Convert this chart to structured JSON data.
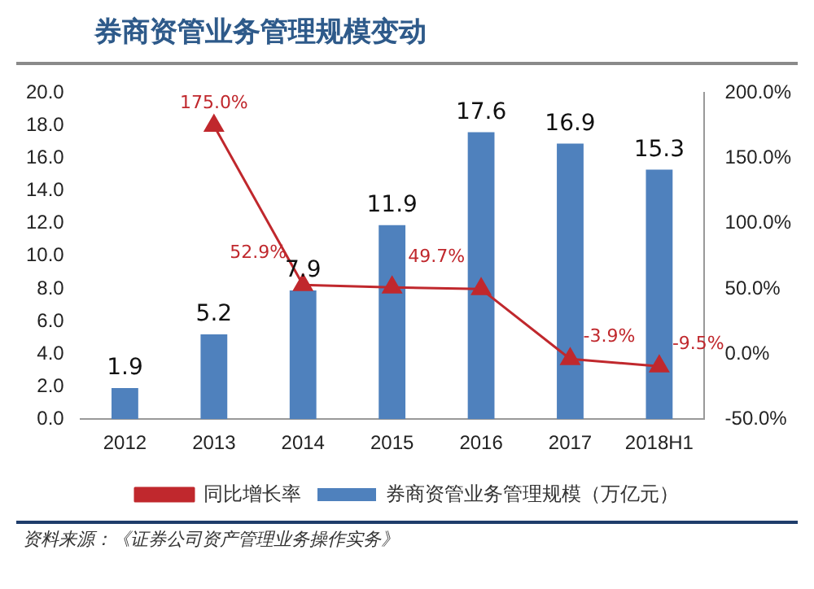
{
  "chart_data": {
    "type": "bar",
    "title": "券商资管业务管理规模变动",
    "categories": [
      "2012",
      "2013",
      "2014",
      "2015",
      "2016",
      "2017",
      "2018H1"
    ],
    "series": [
      {
        "name": "券商资管业务管理规模（万亿元）",
        "color": "#4f81bd",
        "values": [
          1.9,
          5.2,
          7.9,
          11.9,
          17.6,
          16.9,
          15.3
        ],
        "value_labels": [
          "1.9",
          "5.2",
          "7.9",
          "11.9",
          "17.6",
          "16.9",
          "15.3"
        ]
      },
      {
        "name": "同比增长率",
        "type": "line",
        "axis": "y2",
        "color": "#c0282d",
        "marker": "triangle",
        "values": [
          null,
          175.0,
          52.9,
          51,
          49.7,
          -3.9,
          -9.5
        ],
        "value_labels": [
          null,
          "175.0%",
          "52.9%",
          null,
          "49.7%",
          "-3.9%",
          "-9.5%"
        ]
      }
    ],
    "ylim": [
      0,
      20
    ],
    "yticks": [
      {
        "value": 0,
        "label": "0.0"
      },
      {
        "value": 2,
        "label": "2.0"
      },
      {
        "value": 4,
        "label": "4.0"
      },
      {
        "value": 6,
        "label": "6.0"
      },
      {
        "value": 8,
        "label": "8.0"
      },
      {
        "value": 10,
        "label": "10.0"
      },
      {
        "value": 12,
        "label": "12.0"
      },
      {
        "value": 14,
        "label": "14.0"
      },
      {
        "value": 16,
        "label": "16.0"
      },
      {
        "value": 18,
        "label": "18.0"
      },
      {
        "value": 20,
        "label": "20.0"
      }
    ],
    "y2lim": [
      -50,
      200
    ],
    "y2ticks": [
      {
        "value": -50,
        "label": "-50.0%"
      },
      {
        "value": 0,
        "label": "0.0%"
      },
      {
        "value": 50,
        "label": "50.0%"
      },
      {
        "value": 100,
        "label": "100.0%"
      },
      {
        "value": 150,
        "label": "150.0%"
      },
      {
        "value": 200,
        "label": "200.0%"
      }
    ],
    "grid": false,
    "legend": "bottom",
    "annotations": [
      "资料来源：《证券公司资产管理业务操作实务》"
    ]
  }
}
